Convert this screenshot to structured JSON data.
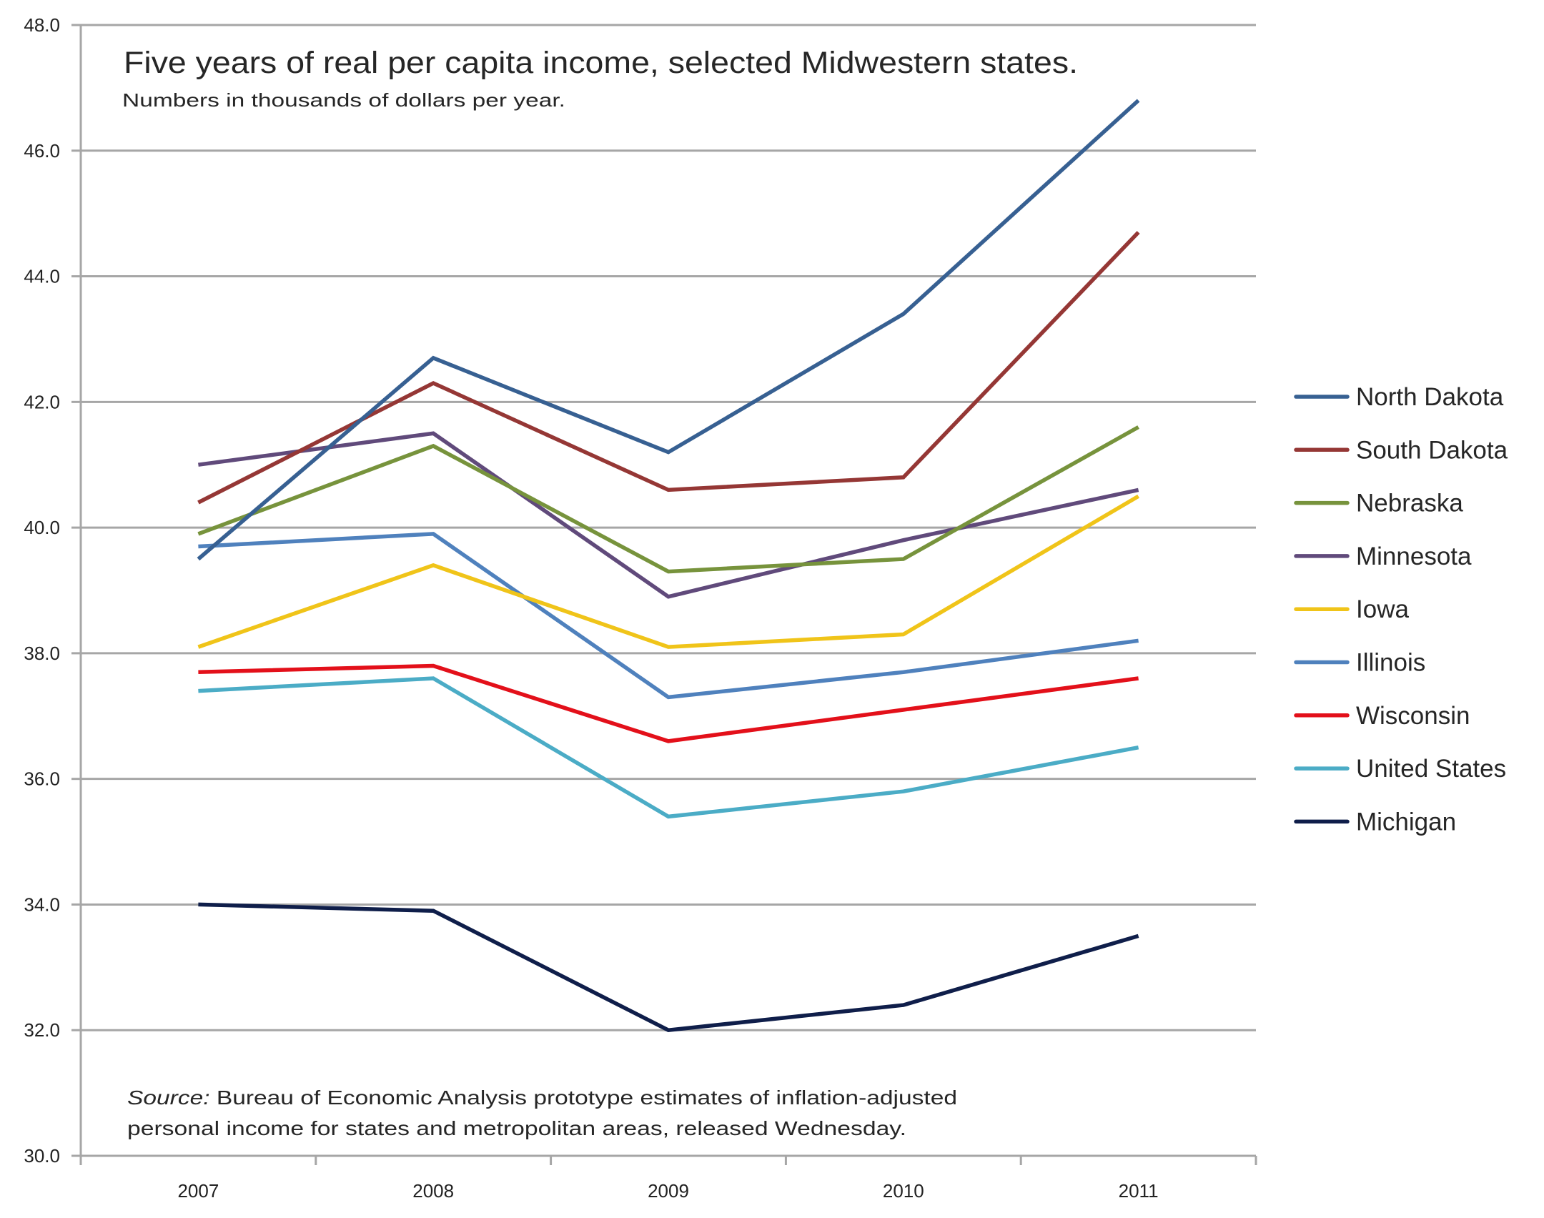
{
  "chart_data": {
    "type": "line",
    "title": "Five years of real per capita income, selected Midwestern states.",
    "subtitle": "Numbers  in thousands of dollars per year.",
    "source_label": "Source:",
    "source_text_line1": " Bureau of Economic Analysis prototype estimates of inflation-adjusted",
    "source_text_line2": "personal income for states and metropolitan areas, released Wednesday.",
    "xlabel": "",
    "ylabel": "",
    "categories": [
      "2007",
      "2008",
      "2009",
      "2010",
      "2011"
    ],
    "ylim": [
      30.0,
      48.0
    ],
    "yticks": [
      "30.0",
      "32.0",
      "34.0",
      "36.0",
      "38.0",
      "40.0",
      "42.0",
      "44.0",
      "46.0",
      "48.0"
    ],
    "grid": true,
    "legend_position": "right",
    "series": [
      {
        "name": "North Dakota",
        "color": "#376092",
        "values": [
          39.5,
          42.7,
          41.2,
          43.4,
          46.8
        ]
      },
      {
        "name": "South Dakota",
        "color": "#953735",
        "values": [
          40.4,
          42.3,
          40.6,
          40.8,
          44.7
        ]
      },
      {
        "name": "Nebraska",
        "color": "#77933C",
        "values": [
          39.9,
          41.3,
          39.3,
          39.5,
          41.6
        ]
      },
      {
        "name": "Minnesota",
        "color": "#604A7B",
        "values": [
          41.0,
          41.5,
          38.9,
          39.8,
          40.6
        ]
      },
      {
        "name": "Iowa",
        "color": "#F0C419",
        "values": [
          38.1,
          39.4,
          38.1,
          38.3,
          40.5
        ]
      },
      {
        "name": "Illinois",
        "color": "#4F81BD",
        "values": [
          39.7,
          39.9,
          37.3,
          37.7,
          38.2
        ]
      },
      {
        "name": "Wisconsin",
        "color": "#E3101A",
        "values": [
          37.7,
          37.8,
          36.6,
          37.1,
          37.6
        ]
      },
      {
        "name": "United States",
        "color": "#4BACC6",
        "values": [
          37.4,
          37.6,
          35.4,
          35.8,
          36.5
        ]
      },
      {
        "name": "Michigan",
        "color": "#0F1E4A",
        "values": [
          34.0,
          33.9,
          32.0,
          32.4,
          33.5
        ]
      }
    ]
  }
}
